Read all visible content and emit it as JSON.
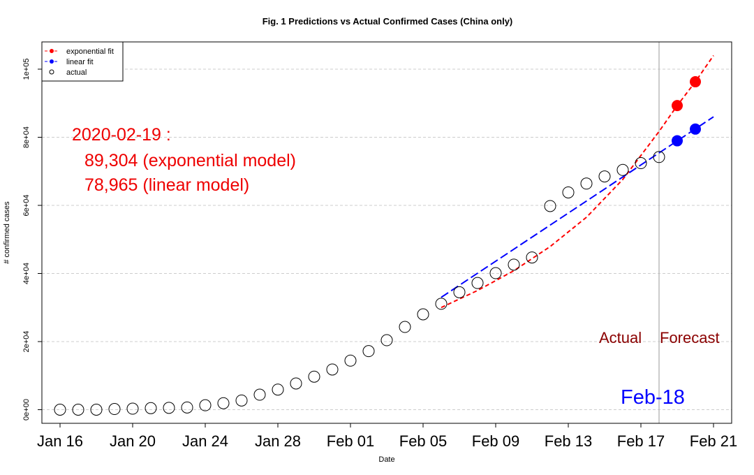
{
  "chart_data": {
    "type": "scatter",
    "title": "Fig. 1 Predictions vs Actual Confirmed Cases (China only)",
    "xlabel": "Date",
    "ylabel": "# confirmed cases",
    "x_ticks": [
      "Jan 16",
      "Jan 20",
      "Jan 24",
      "Jan 28",
      "Feb 01",
      "Feb 05",
      "Feb 09",
      "Feb 13",
      "Feb 17",
      "Feb 21"
    ],
    "y_ticks": [
      "0e+00",
      "2e+04",
      "4e+04",
      "6e+04",
      "8e+04",
      "1e+05"
    ],
    "xlim": [
      "2020-01-15",
      "2020-02-22"
    ],
    "ylim": [
      -4000,
      108000
    ],
    "grid": "horizontal dashed",
    "legend": {
      "position": "top-left",
      "entries": [
        {
          "label": "exponential fit",
          "color": "#ff0000"
        },
        {
          "label": "linear fit",
          "color": "#0000ff"
        },
        {
          "label": "actual",
          "color": "#000000"
        }
      ]
    },
    "series": [
      {
        "name": "actual",
        "x": [
          "2020-01-16",
          "2020-01-17",
          "2020-01-18",
          "2020-01-19",
          "2020-01-20",
          "2020-01-21",
          "2020-01-22",
          "2020-01-23",
          "2020-01-24",
          "2020-01-25",
          "2020-01-26",
          "2020-01-27",
          "2020-01-28",
          "2020-01-29",
          "2020-01-30",
          "2020-01-31",
          "2020-02-01",
          "2020-02-02",
          "2020-02-03",
          "2020-02-04",
          "2020-02-05",
          "2020-02-06",
          "2020-02-07",
          "2020-02-08",
          "2020-02-09",
          "2020-02-10",
          "2020-02-11",
          "2020-02-12",
          "2020-02-13",
          "2020-02-14",
          "2020-02-15",
          "2020-02-16",
          "2020-02-17",
          "2020-02-18"
        ],
        "y": [
          0,
          0,
          0,
          200,
          300,
          450,
          550,
          650,
          1300,
          1900,
          2700,
          4400,
          5900,
          7700,
          9700,
          11800,
          14400,
          17200,
          20400,
          24300,
          28000,
          31100,
          34500,
          37200,
          40100,
          42600,
          44700,
          59800,
          63800,
          66400,
          68500,
          70400,
          72400,
          74200
        ]
      },
      {
        "name": "exponential fit",
        "x": [
          "2020-02-06",
          "2020-02-08",
          "2020-02-10",
          "2020-02-12",
          "2020-02-14",
          "2020-02-16",
          "2020-02-18",
          "2020-02-19",
          "2020-02-20",
          "2020-02-21"
        ],
        "y": [
          30000,
          35000,
          40800,
          47900,
          56500,
          67600,
          81700,
          89304,
          96300,
          104000
        ]
      },
      {
        "name": "linear fit",
        "x": [
          "2020-02-06",
          "2020-02-21"
        ],
        "y": [
          33000,
          86000
        ]
      },
      {
        "name": "exponential forecast",
        "x": [
          "2020-02-19",
          "2020-02-20"
        ],
        "y": [
          89304,
          96300
        ],
        "color": "#ff0000"
      },
      {
        "name": "linear forecast",
        "x": [
          "2020-02-19",
          "2020-02-20"
        ],
        "y": [
          78965,
          82400
        ],
        "color": "#0000ff"
      }
    ],
    "vline": {
      "x": "2020-02-18",
      "color": "#bbbbbb"
    },
    "annotations": {
      "date_line": "2020-02-19 :",
      "exp_line": "89,304 (exponential model)",
      "lin_line": "78,965 (linear model)",
      "actual_label": "Actual",
      "forecast_label": "Forecast",
      "vline_label": "Feb-18"
    }
  }
}
